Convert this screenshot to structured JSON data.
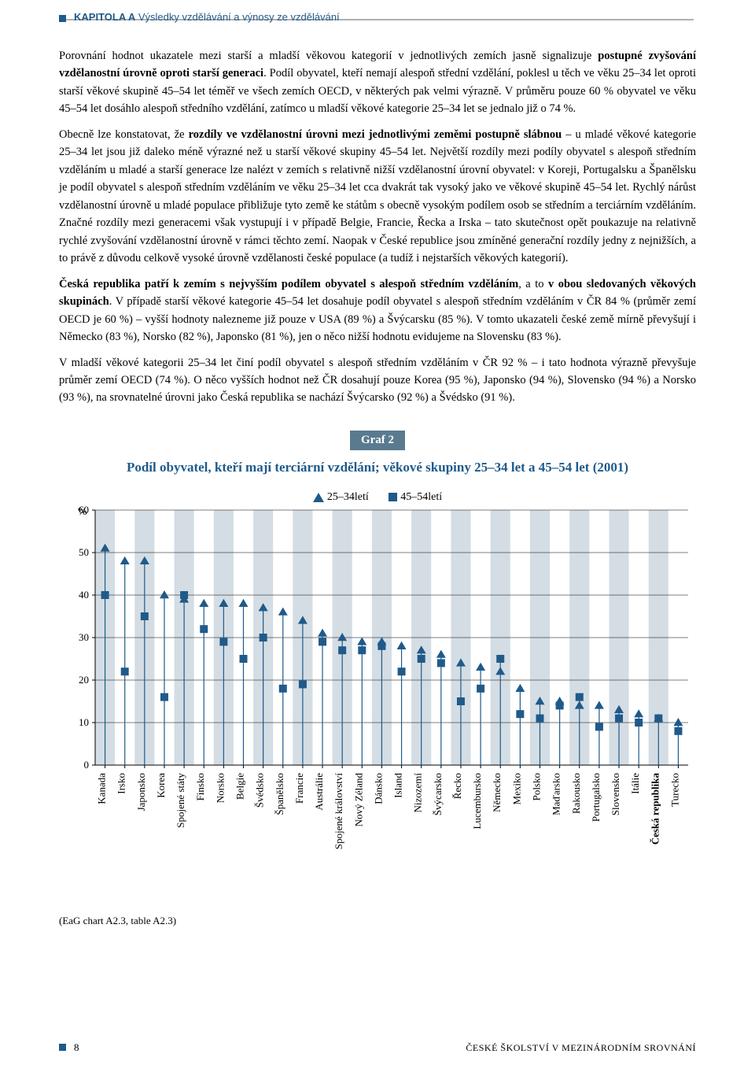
{
  "header": {
    "chapter": "KAPITOLA A",
    "subtitle": "Výsledky vzdělávání a výnosy ze vzdělávání"
  },
  "paragraphs": {
    "p1_a": "Porovnání hodnot ukazatele mezi starší a mladší věkovou kategorií v jednotlivých zemích jasně signalizuje ",
    "p1_b": "postupné zvyšování vzdělanostní úrovně oproti starší generaci",
    "p1_c": ". Podíl obyvatel, kteří nemají alespoň střední vzdělání, poklesl u těch ve věku 25–34 let oproti starší věkové skupině 45–54 let téměř ve všech zemích OECD, v některých pak velmi výrazně. V průměru pouze 60 % obyvatel ve věku 45–54 let dosáhlo alespoň středního vzdělání, zatímco u mladší věkové kategorie 25–34 let se jednalo již o 74 %.",
    "p2_a": "Obecně lze konstatovat, že ",
    "p2_b": "rozdíly ve vzdělanostní úrovni mezi jednotlivými zeměmi postupně slábnou",
    "p2_c": " – u mladé věkové kategorie 25–34 let jsou již daleko méně výrazné než u starší věkové skupiny 45–54 let. Největší rozdíly mezi podíly obyvatel s alespoň středním vzděláním u mladé a starší generace lze nalézt v zemích s relativně nižší vzdělanostní úrovní obyvatel: v Koreji, Portugalsku a Španělsku je podíl obyvatel s alespoň středním vzděláním ve věku 25–34 let cca dvakrát tak vysoký jako ve věkové skupině 45–54 let. Rychlý nárůst vzdělanostní úrovně u mladé populace přibližuje tyto země ke státům s obecně vysokým podílem osob se středním a terciárním vzděláním. Značné rozdíly mezi generacemi však vystupují i v případě Belgie, Francie, Řecka a Irska – tato skutečnost opět poukazuje na relativně rychlé zvyšování vzdělanostní úrovně v rámci těchto zemí. Naopak v České republice jsou zmíněné generační rozdíly jedny z nejnižších, a to právě z důvodu celkově vysoké úrovně vzdělanosti české populace (a tudíž i nejstarších věkových kategorií).",
    "p3_a": "Česká republika patří k zemím s nejvyšším podílem obyvatel s alespoň středním vzděláním",
    "p3_b": ", a to ",
    "p3_c": "v obou sledovaných věkových skupinách",
    "p3_d": ". V případě starší věkové kategorie 45–54 let dosahuje podíl obyvatel s alespoň středním vzděláním v ČR 84 % (průměr zemí OECD je 60 %) – vyšší hodnoty nalezneme již pouze v USA (89 %) a Švýcarsku (85 %). V tomto ukazateli české země mírně převyšují i Německo (83 %), Norsko (82 %), Japonsko (81 %), jen o něco nižší hodnotu evidujeme na Slovensku (83 %).",
    "p4": "V mladší věkové kategorii 25–34 let činí podíl obyvatel s alespoň středním vzděláním v ČR 92 % – i tato hodnota výrazně převyšuje průměr zemí OECD (74 %). O něco vyšších hodnot než ČR dosahují pouze Korea (95 %), Japonsko (94 %), Slovensko (94 %) a Norsko (93 %), na srovnatelné úrovni jako Česká republika se nachází Švýcarsko (92 %) a Švédsko (91 %)."
  },
  "chart": {
    "label": "Graf 2",
    "title": "Podíl obyvatel, kteří mají terciární vzdělání; věkové skupiny 25–34 let a 45–54 let (2001)",
    "legend_a": "25–34letí",
    "legend_b": "45–54letí",
    "y_label": "%",
    "ymax": 60,
    "ymin": 0,
    "ytick_step": 10,
    "yticks": [
      "0",
      "10",
      "20",
      "30",
      "40",
      "50",
      "60"
    ],
    "axis_color": "#000000",
    "grid_color": "#000000",
    "band_color": "#d4dde4",
    "background_color": "#ffffff",
    "marker_color": "#1f5a8a",
    "stem_color": "#1f5a8a",
    "bold_category": "Česká republika",
    "categories": [
      "Kanada",
      "Irsko",
      "Japonsko",
      "Korea",
      "Spojené státy",
      "Finsko",
      "Norsko",
      "Belgie",
      "Švédsko",
      "Španělsko",
      "Francie",
      "Austrálie",
      "Spojené království",
      "Nový Zéland",
      "Dánsko",
      "Island",
      "Nizozemí",
      "Švýcarsko",
      "Řecko",
      "Lucembursko",
      "Německo",
      "Mexiko",
      "Polsko",
      "Maďarsko",
      "Rakousko",
      "Portugalsko",
      "Slovensko",
      "Itálie",
      "Česká republika",
      "Turecko"
    ],
    "young": [
      51,
      48,
      48,
      40,
      39,
      38,
      38,
      38,
      37,
      36,
      34,
      31,
      30,
      29,
      29,
      28,
      27,
      26,
      24,
      23,
      22,
      18,
      15,
      15,
      14,
      14,
      13,
      12,
      11,
      10
    ],
    "old": [
      40,
      22,
      35,
      16,
      40,
      32,
      29,
      25,
      30,
      18,
      19,
      29,
      27,
      27,
      28,
      22,
      25,
      24,
      15,
      18,
      25,
      12,
      11,
      14,
      16,
      9,
      11,
      10,
      11,
      8
    ]
  },
  "footnote": "(EaG chart A2.3, table A2.3)",
  "footer": {
    "page": "8",
    "right": "ČESKÉ ŠKOLSTVÍ V MEZINÁRODNÍM SROVNÁNÍ"
  }
}
